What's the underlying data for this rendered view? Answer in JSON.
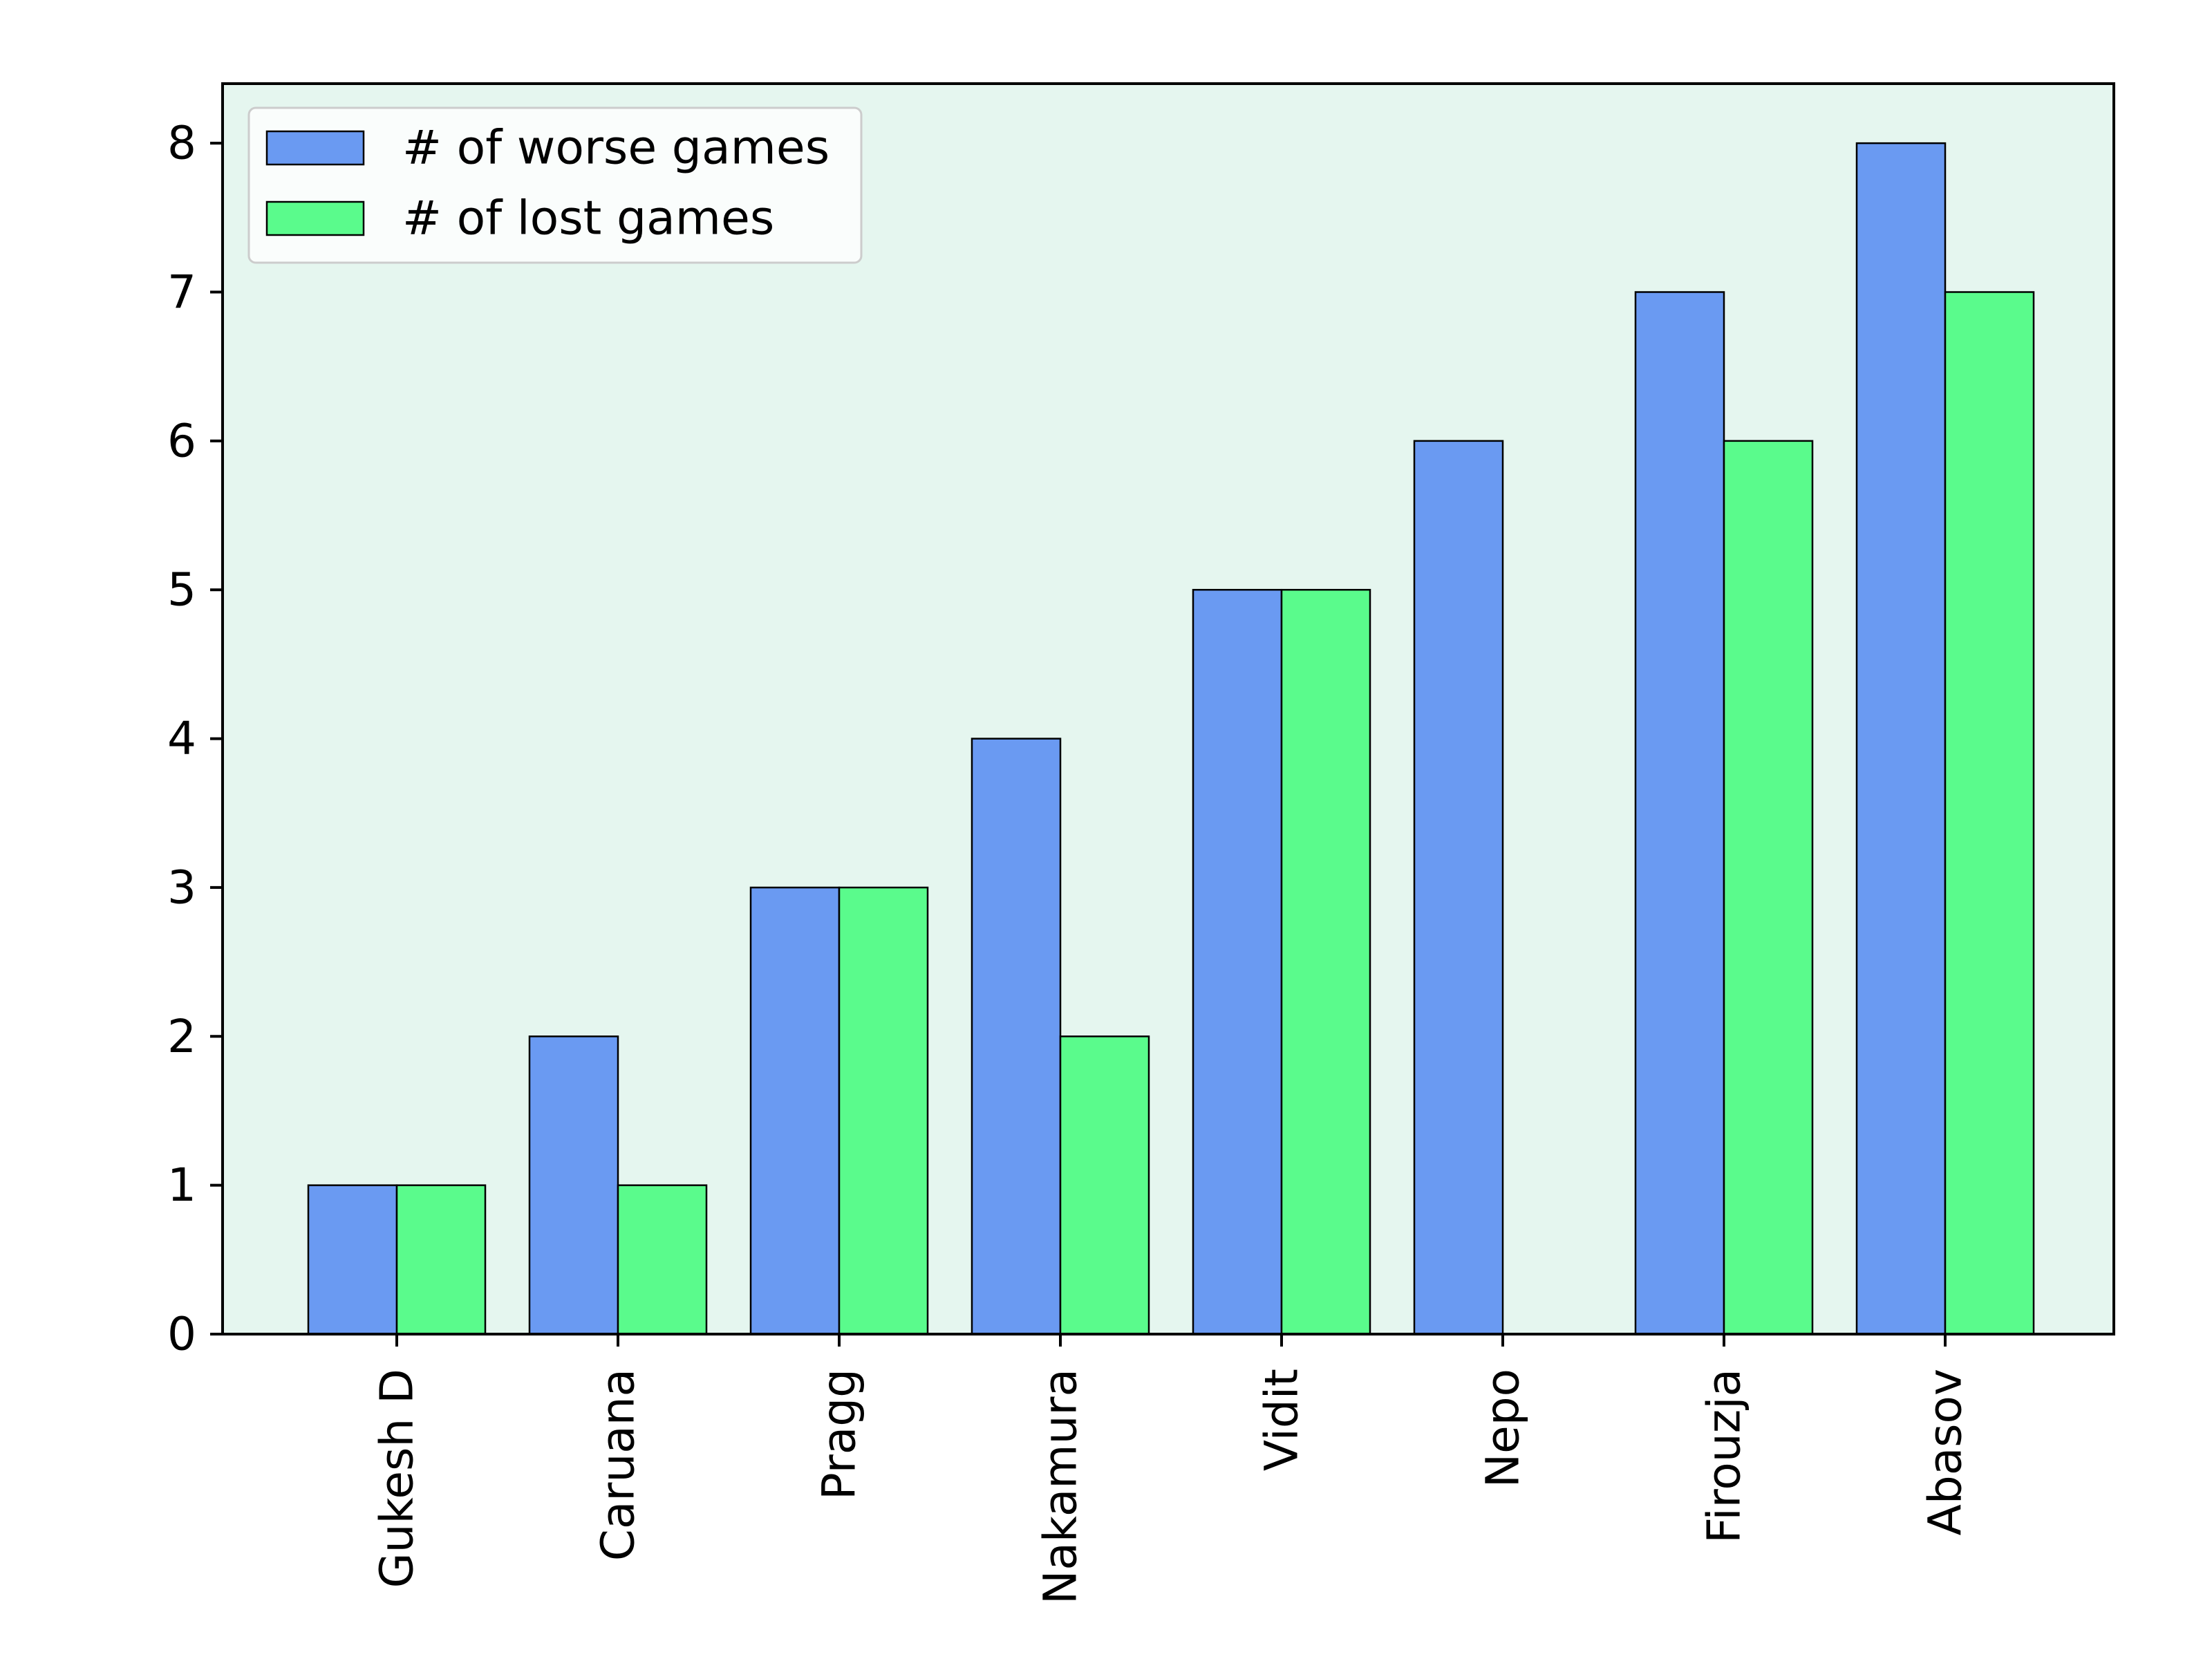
{
  "chart_data": {
    "type": "bar",
    "title": "",
    "xlabel": "",
    "ylabel": "",
    "categories": [
      "Gukesh D",
      "Caruana",
      "Pragg",
      "Nakamura",
      "Vidit",
      "Nepo",
      "Firouzja",
      "Abasov"
    ],
    "series": [
      {
        "name": "# of worse games",
        "values": [
          1,
          2,
          3,
          4,
          5,
          6,
          7,
          8
        ],
        "color": "#6a9af2"
      },
      {
        "name": "# of lost games",
        "values": [
          1,
          1,
          3,
          2,
          5,
          0,
          6,
          7
        ],
        "color": "#5afb8c"
      }
    ],
    "ylim": [
      0,
      8.4
    ],
    "yticks": [
      0,
      1,
      2,
      3,
      4,
      5,
      6,
      7,
      8
    ],
    "x_tick_rotation": "vertical",
    "grid": false,
    "legend_position": "upper left",
    "plot_background": "#e5f6ef",
    "bar_edge_color": "#000000"
  }
}
